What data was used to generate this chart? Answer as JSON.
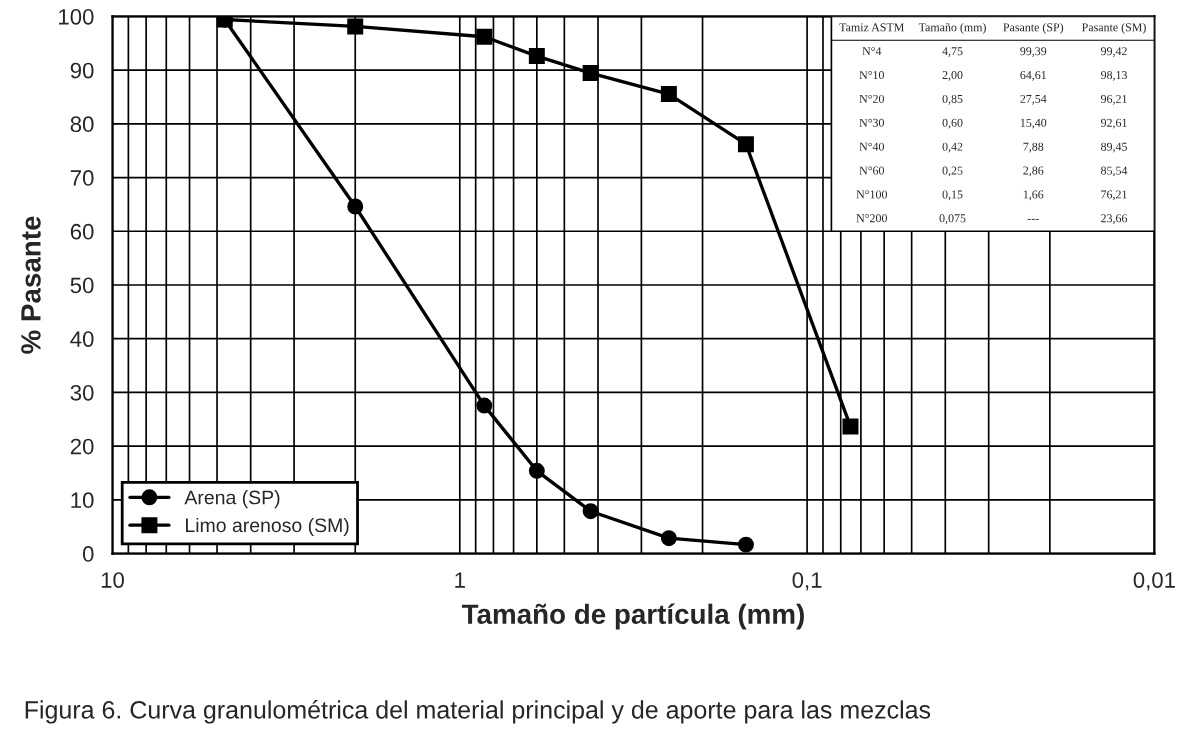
{
  "chart_data": {
    "type": "line",
    "xlabel": "Tamaño de partícula (mm)",
    "ylabel": "% Pasante",
    "log": "x",
    "xlim": [
      10,
      0.01
    ],
    "xticks": [
      10,
      1,
      {
        "value": 0.1,
        "label": "0,1"
      },
      {
        "value": 0.01,
        "label": "0,01"
      }
    ],
    "ylim": [
      0,
      100
    ],
    "yticks": [
      0,
      10,
      20,
      30,
      40,
      50,
      60,
      70,
      80,
      90,
      100
    ],
    "grid": true,
    "legend": "bottom left",
    "series": [
      {
        "name": "Arena (SP)",
        "color": "#000000",
        "marker": "circle",
        "x": [
          4.75,
          2.0,
          0.85,
          0.6,
          0.42,
          0.25,
          0.15
        ],
        "values": [
          99.39,
          64.61,
          27.54,
          15.4,
          7.88,
          2.86,
          1.66
        ]
      },
      {
        "name": "Limo arenoso (SM)",
        "color": "#000000",
        "marker": "square",
        "x": [
          4.75,
          2.0,
          0.85,
          0.6,
          0.42,
          0.25,
          0.15,
          0.075
        ],
        "values": [
          99.42,
          98.13,
          96.21,
          92.61,
          89.45,
          85.54,
          76.21,
          23.66
        ]
      }
    ],
    "annotations": [
      "Figura 6. Curva granulométrica del material principal y de aporte para las mezclas",
      "Tamiz ASTM",
      "Tamaño (mm)",
      "Pasante (SP)",
      "Pasante (SM)",
      "N°4",
      "4,75",
      "99,39",
      "99,42",
      "N°10",
      "2,00",
      "64,61",
      "98,13",
      "N°20",
      "0,85",
      "27,54",
      "96,21",
      "N°30",
      "0,60",
      "15,40",
      "92,61",
      "N°40",
      "0,42",
      "7,88",
      "89,45",
      "N°60",
      "0,25",
      "2,86",
      "85,54",
      "N°100",
      "0,15",
      "1,66",
      "76,21",
      "N°200",
      "0,075",
      "---",
      "23,66"
    ]
  }
}
